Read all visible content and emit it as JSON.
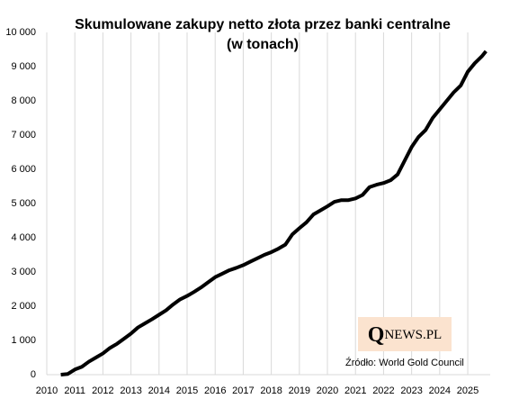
{
  "chart_data": {
    "type": "line",
    "title": "Skumulowane zakupy netto złota przez banki centralne",
    "subtitle": "(w tonach)",
    "x": [
      2010.5,
      2010.75,
      2011.0,
      2011.25,
      2011.5,
      2011.75,
      2012.0,
      2012.25,
      2012.5,
      2012.75,
      2013.0,
      2013.25,
      2013.5,
      2013.75,
      2014.0,
      2014.25,
      2014.5,
      2014.75,
      2015.0,
      2015.25,
      2015.5,
      2015.75,
      2016.0,
      2016.25,
      2016.5,
      2016.75,
      2017.0,
      2017.25,
      2017.5,
      2017.75,
      2018.0,
      2018.25,
      2018.5,
      2018.75,
      2019.0,
      2019.25,
      2019.5,
      2019.75,
      2020.0,
      2020.25,
      2020.5,
      2020.75,
      2021.0,
      2021.25,
      2021.5,
      2021.75,
      2022.0,
      2022.25,
      2022.5,
      2022.75,
      2023.0,
      2023.25,
      2023.5,
      2023.75,
      2024.0,
      2024.25,
      2024.5,
      2024.75,
      2025.0,
      2025.25,
      2025.5,
      2025.65
    ],
    "series": [
      {
        "color": "#000000",
        "values": [
          0,
          20,
          150,
          230,
          380,
          500,
          620,
          780,
          900,
          1050,
          1200,
          1380,
          1500,
          1620,
          1750,
          1880,
          2050,
          2200,
          2300,
          2420,
          2550,
          2700,
          2850,
          2950,
          3050,
          3120,
          3200,
          3300,
          3400,
          3500,
          3580,
          3680,
          3800,
          4100,
          4280,
          4450,
          4680,
          4800,
          4920,
          5050,
          5100,
          5100,
          5150,
          5250,
          5480,
          5550,
          5600,
          5680,
          5850,
          6250,
          6650,
          6950,
          7150,
          7500,
          7750,
          8000,
          8250,
          8450,
          8850,
          9100,
          9300,
          9450
        ]
      }
    ],
    "xlim": [
      2010,
      2025.8
    ],
    "xticks": [
      2010,
      2011,
      2012,
      2013,
      2014,
      2015,
      2016,
      2017,
      2018,
      2019,
      2020,
      2021,
      2022,
      2023,
      2024,
      2025
    ],
    "ylim": [
      0,
      10000
    ],
    "yticks": [
      0,
      {
        "value": 1000,
        "label": "1 000"
      },
      {
        "value": 2000,
        "label": "2 000"
      },
      {
        "value": 3000,
        "label": "3 000"
      },
      {
        "value": 4000,
        "label": "4 000"
      },
      {
        "value": 5000,
        "label": "5 000"
      },
      {
        "value": 6000,
        "label": "6 000"
      },
      {
        "value": 7000,
        "label": "7 000"
      },
      {
        "value": 8000,
        "label": "8 000"
      },
      {
        "value": 9000,
        "label": "9 000"
      },
      {
        "value": 10000,
        "label": "10 000"
      }
    ],
    "grid": "x",
    "logo": {
      "initial": "Q",
      "rest": "NEWS.PL"
    },
    "source": "Źródło: World Gold Council"
  }
}
